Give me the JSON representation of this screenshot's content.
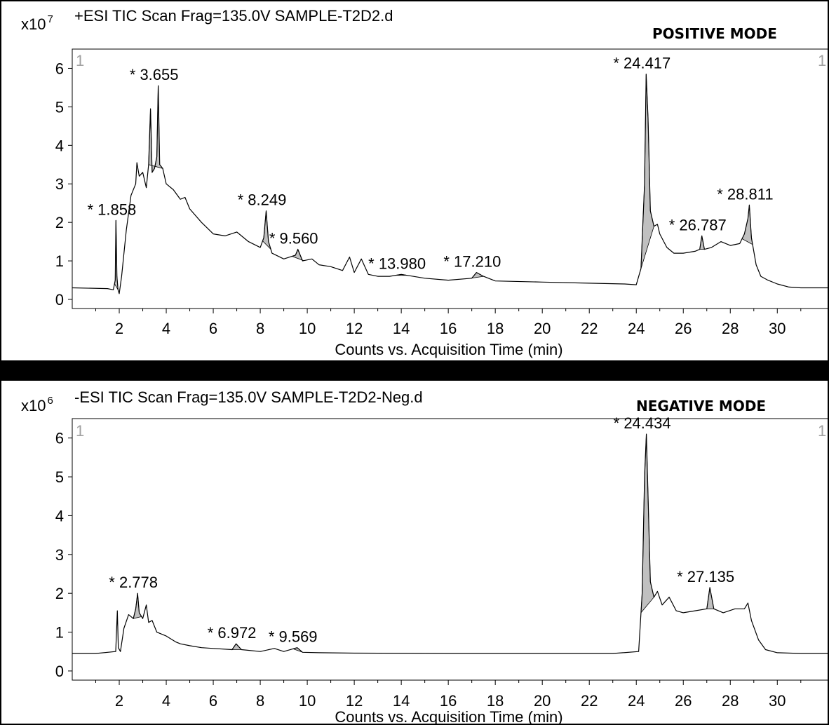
{
  "chart_data": [
    {
      "type": "line",
      "header": "+ESI TIC Scan Frag=135.0V SAMPLE-T2D2.d",
      "mode_label": "POSITIVE MODE",
      "multiplier": {
        "base": "x10",
        "exp": "7"
      },
      "corner_marks": [
        "1",
        "1"
      ],
      "xlabel": "Counts vs. Acquisition Time (min)",
      "xlim": [
        0,
        32.2
      ],
      "ylim": [
        -0.2,
        6.5
      ],
      "xticks": [
        2,
        4,
        6,
        8,
        10,
        12,
        14,
        16,
        18,
        20,
        22,
        24,
        26,
        28,
        30
      ],
      "yticks": [
        0,
        1,
        2,
        3,
        4,
        5,
        6
      ],
      "colors": {
        "trace": "#000000",
        "peak_fill": "#c0c0c0"
      },
      "x": [
        0,
        1.5,
        1.75,
        1.83,
        1.86,
        1.9,
        1.95,
        2.0,
        2.1,
        2.3,
        2.5,
        2.7,
        2.75,
        2.85,
        3.0,
        3.15,
        3.25,
        3.33,
        3.4,
        3.5,
        3.6,
        3.66,
        3.72,
        3.85,
        4.0,
        4.3,
        4.6,
        4.8,
        5.0,
        5.5,
        6.0,
        6.5,
        7.0,
        7.5,
        8.0,
        8.15,
        8.25,
        8.35,
        8.5,
        9.0,
        9.5,
        9.6,
        9.8,
        10.2,
        10.5,
        11.0,
        11.5,
        11.8,
        12.0,
        12.3,
        12.6,
        13.0,
        13.5,
        14.0,
        15.0,
        16.0,
        17.0,
        17.2,
        17.5,
        18.0,
        20.0,
        22.0,
        23.5,
        24.0,
        24.2,
        24.35,
        24.42,
        24.5,
        24.6,
        24.75,
        24.9,
        25.0,
        25.3,
        25.6,
        26.0,
        26.5,
        26.7,
        26.79,
        26.9,
        27.2,
        27.6,
        28.0,
        28.4,
        28.6,
        28.75,
        28.81,
        28.9,
        29.1,
        29.3,
        29.6,
        30.0,
        30.5,
        31.0,
        32.2
      ],
      "y": [
        0.3,
        0.28,
        0.25,
        0.5,
        2.05,
        0.6,
        0.25,
        0.15,
        0.6,
        1.8,
        2.7,
        3.0,
        3.55,
        3.2,
        3.3,
        2.9,
        3.5,
        4.95,
        3.3,
        3.4,
        3.7,
        5.55,
        3.5,
        3.4,
        3.0,
        2.85,
        2.6,
        2.65,
        2.35,
        2.0,
        1.7,
        1.65,
        1.75,
        1.5,
        1.35,
        1.6,
        2.3,
        1.5,
        1.2,
        1.05,
        1.15,
        1.3,
        1.0,
        1.05,
        0.9,
        0.85,
        0.75,
        1.1,
        0.7,
        1.05,
        0.65,
        0.6,
        0.6,
        0.65,
        0.55,
        0.5,
        0.55,
        0.7,
        0.6,
        0.48,
        0.45,
        0.42,
        0.4,
        0.38,
        0.8,
        3.0,
        5.85,
        4.7,
        2.3,
        1.9,
        1.95,
        1.7,
        1.35,
        1.2,
        1.2,
        1.25,
        1.3,
        1.65,
        1.3,
        1.35,
        1.5,
        1.4,
        1.45,
        1.7,
        2.1,
        2.45,
        1.6,
        0.9,
        0.6,
        0.5,
        0.4,
        0.32,
        0.3,
        0.3
      ],
      "peaks": [
        {
          "rt": "1.858",
          "x": 1.86,
          "y": 2.05,
          "lo": 1.8,
          "hi": 1.95
        },
        {
          "rt": "3.655",
          "x": 3.66,
          "y": 5.55,
          "lo": 3.25,
          "hi": 3.85
        },
        {
          "rt": "8.249",
          "x": 8.25,
          "y": 2.3,
          "lo": 8.1,
          "hi": 8.45
        },
        {
          "rt": "9.560",
          "x": 9.6,
          "y": 1.3,
          "lo": 9.35,
          "hi": 9.85
        },
        {
          "rt": "13.980",
          "x": 14.0,
          "y": 0.65,
          "lo": 13.75,
          "hi": 14.25
        },
        {
          "rt": "17.210",
          "x": 17.2,
          "y": 0.7,
          "lo": 16.9,
          "hi": 17.5
        },
        {
          "rt": "24.417",
          "x": 24.42,
          "y": 5.85,
          "lo": 24.2,
          "hi": 24.75
        },
        {
          "rt": "26.787",
          "x": 26.79,
          "y": 1.65,
          "lo": 26.7,
          "hi": 26.9
        },
        {
          "rt": "28.811",
          "x": 28.81,
          "y": 2.45,
          "lo": 28.5,
          "hi": 28.95
        }
      ],
      "peak_labels": [
        {
          "text": "* 1.858",
          "x": 1.86,
          "y": 2.05
        },
        {
          "text": "* 3.655",
          "x": 3.66,
          "y": 5.55
        },
        {
          "text": "* 8.249",
          "x": 8.25,
          "y": 2.3
        },
        {
          "text": "* 9.560",
          "x": 9.6,
          "y": 1.3
        },
        {
          "text": "* 13.980",
          "x": 14.0,
          "y": 0.65
        },
        {
          "text": "* 17.210",
          "x": 17.2,
          "y": 0.7
        },
        {
          "text": "* 24.417",
          "x": 24.42,
          "y": 5.85
        },
        {
          "text": "* 26.787",
          "x": 26.79,
          "y": 1.65
        },
        {
          "text": "* 28.811",
          "x": 28.81,
          "y": 2.45
        }
      ]
    },
    {
      "type": "line",
      "header": "-ESI TIC Scan Frag=135.0V SAMPLE-T2D2-Neg.d",
      "mode_label": "NEGATIVE MODE",
      "multiplier": {
        "base": "x10",
        "exp": "6"
      },
      "corner_marks": [
        "1",
        "1"
      ],
      "xlabel": "Counts vs. Acquisition Time (min)",
      "xlim": [
        0,
        32.2
      ],
      "ylim": [
        -0.2,
        6.5
      ],
      "xticks": [
        2,
        4,
        6,
        8,
        10,
        12,
        14,
        16,
        18,
        20,
        22,
        24,
        26,
        28,
        30
      ],
      "yticks": [
        0,
        1,
        2,
        3,
        4,
        5,
        6
      ],
      "colors": {
        "trace": "#000000",
        "peak_fill": "#c0c0c0"
      },
      "x": [
        0,
        1.0,
        1.85,
        1.92,
        1.96,
        2.05,
        2.2,
        2.4,
        2.6,
        2.7,
        2.78,
        2.85,
        3.0,
        3.15,
        3.25,
        3.4,
        3.6,
        4.0,
        4.4,
        4.6,
        5.0,
        5.5,
        6.0,
        6.8,
        6.97,
        7.2,
        8.0,
        8.6,
        9.0,
        9.57,
        9.8,
        10.5,
        12.0,
        16.0,
        20.0,
        23.0,
        24.1,
        24.25,
        24.35,
        24.43,
        24.5,
        24.6,
        24.75,
        24.9,
        25.1,
        25.4,
        25.7,
        26.0,
        26.5,
        27.0,
        27.13,
        27.3,
        27.7,
        28.2,
        28.6,
        28.75,
        28.9,
        29.2,
        29.5,
        30.0,
        31.0,
        32.2
      ],
      "y": [
        0.45,
        0.45,
        0.5,
        1.55,
        0.6,
        0.5,
        1.1,
        1.45,
        1.35,
        1.6,
        2.0,
        1.5,
        1.35,
        1.7,
        1.25,
        1.3,
        1.0,
        0.9,
        0.75,
        0.7,
        0.65,
        0.6,
        0.58,
        0.55,
        0.7,
        0.55,
        0.5,
        0.58,
        0.5,
        0.6,
        0.48,
        0.47,
        0.46,
        0.45,
        0.45,
        0.45,
        0.5,
        2.0,
        5.0,
        6.1,
        4.5,
        2.3,
        1.9,
        2.05,
        1.7,
        1.9,
        1.55,
        1.5,
        1.55,
        1.6,
        2.15,
        1.6,
        1.5,
        1.6,
        1.6,
        1.75,
        1.3,
        0.8,
        0.55,
        0.47,
        0.45,
        0.45
      ],
      "peaks": [
        {
          "rt": "2.778",
          "x": 2.78,
          "y": 2.0,
          "lo": 2.6,
          "hi": 2.95
        },
        {
          "rt": "6.972",
          "x": 6.97,
          "y": 0.7,
          "lo": 6.8,
          "hi": 7.2
        },
        {
          "rt": "9.569",
          "x": 9.57,
          "y": 0.6,
          "lo": 9.4,
          "hi": 9.8
        },
        {
          "rt": "24.434",
          "x": 24.43,
          "y": 6.1,
          "lo": 24.2,
          "hi": 24.75
        },
        {
          "rt": "27.135",
          "x": 27.13,
          "y": 2.15,
          "lo": 27.0,
          "hi": 27.3
        }
      ],
      "peak_labels": [
        {
          "text": "* 2.778",
          "x": 2.78,
          "y": 2.0
        },
        {
          "text": "* 6.972",
          "x": 6.97,
          "y": 0.7
        },
        {
          "text": "* 9.569",
          "x": 9.57,
          "y": 0.6
        },
        {
          "text": "* 24.434",
          "x": 24.43,
          "y": 6.1
        },
        {
          "text": "* 27.135",
          "x": 27.13,
          "y": 2.15
        }
      ]
    }
  ]
}
